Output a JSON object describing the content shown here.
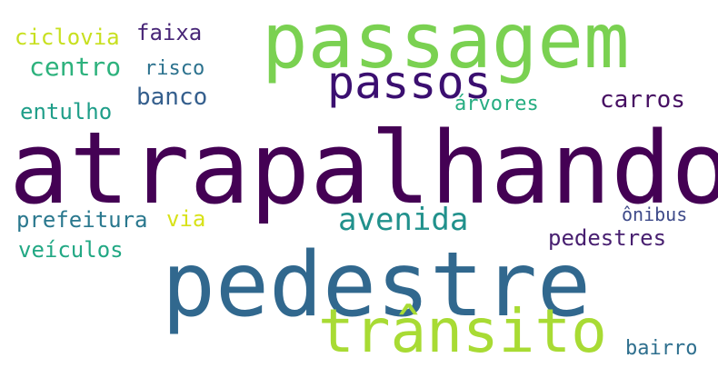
{
  "words": {
    "passagem": {
      "text": "passagem",
      "color": "#7ad151"
    },
    "atrapalhando": {
      "text": "atrapalhando",
      "color": "#440154"
    },
    "pedestre": {
      "text": "pedestre",
      "color": "#31688e"
    },
    "transito": {
      "text": "trânsito",
      "color": "#a8db34"
    },
    "passos": {
      "text": "passos",
      "color": "#3b0f70"
    },
    "avenida": {
      "text": "avenida",
      "color": "#21918c"
    },
    "ciclovia": {
      "text": "ciclovia",
      "color": "#c8e020"
    },
    "faixa": {
      "text": "faixa",
      "color": "#482677"
    },
    "centro": {
      "text": "centro",
      "color": "#2db27d"
    },
    "risco": {
      "text": "risco",
      "color": "#2c728e"
    },
    "banco": {
      "text": "banco",
      "color": "#355f8d"
    },
    "entulho": {
      "text": "entulho",
      "color": "#1f9e89"
    },
    "arvores": {
      "text": "árvores",
      "color": "#26ad81"
    },
    "carros": {
      "text": "carros",
      "color": "#471063"
    },
    "prefeitura": {
      "text": "prefeitura",
      "color": "#2a788e"
    },
    "via": {
      "text": "via",
      "color": "#d8e219"
    },
    "onibus": {
      "text": "ônibus",
      "color": "#3e4a89"
    },
    "pedestres": {
      "text": "pedestres",
      "color": "#481f70"
    },
    "veiculos": {
      "text": "veículos",
      "color": "#22a884"
    },
    "bairro": {
      "text": "bairro",
      "color": "#2e6f8e"
    }
  }
}
